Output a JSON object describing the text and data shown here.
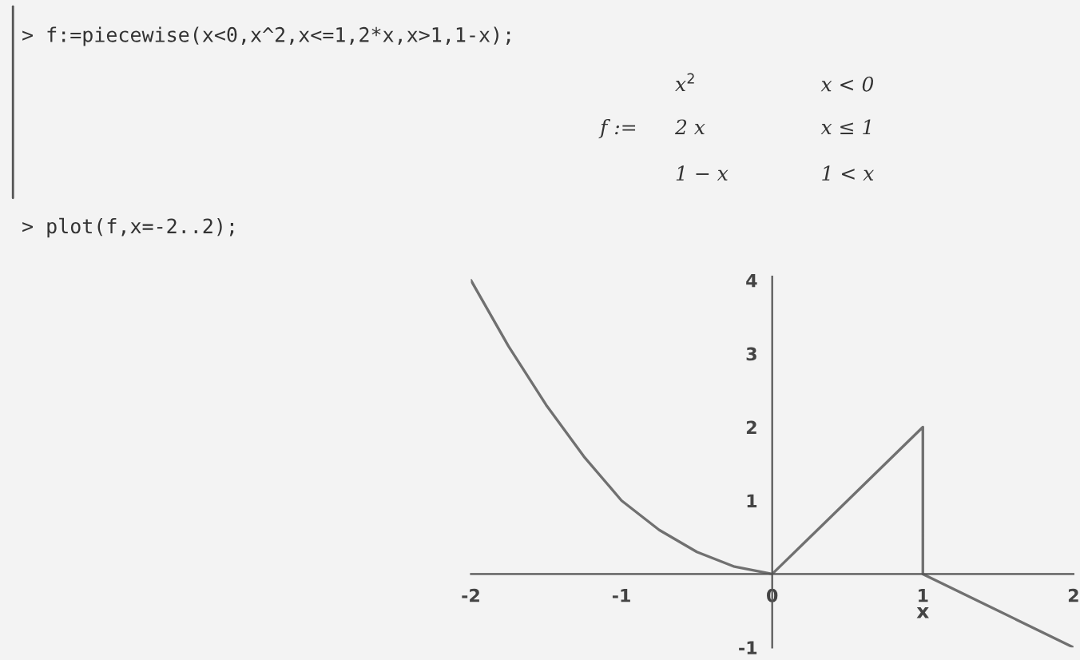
{
  "chart_data": {
    "type": "line",
    "xlabel": "x",
    "x": [
      -2,
      -1.75,
      -1.5,
      -1.25,
      -1,
      -0.75,
      -0.5,
      -0.25,
      0,
      1,
      1,
      2
    ],
    "series": [
      {
        "color": "#707070",
        "values": [
          4,
          3.1,
          2.3,
          1.6,
          1,
          0.6,
          0.3,
          0.1,
          0,
          2,
          0,
          -1
        ]
      }
    ],
    "xlim": [
      -2,
      2
    ],
    "ylim": [
      -1,
      4.05
    ],
    "xticks": [
      -2,
      -1,
      0,
      1,
      2
    ],
    "yticks": [
      -1,
      1,
      2,
      3,
      4
    ],
    "grid": false,
    "marker": "none",
    "line_style": "solid",
    "annotations": [
      "> f:=piecewise(x<0,x^2,x<=1,2*x,x>1,1-x);",
      "f :=",
      "x$^{2}$",
      "x < 0",
      "2 x",
      "x ≤ 1",
      "1 − x",
      "1 < x",
      "> plot(f,x=-2..2);"
    ]
  }
}
